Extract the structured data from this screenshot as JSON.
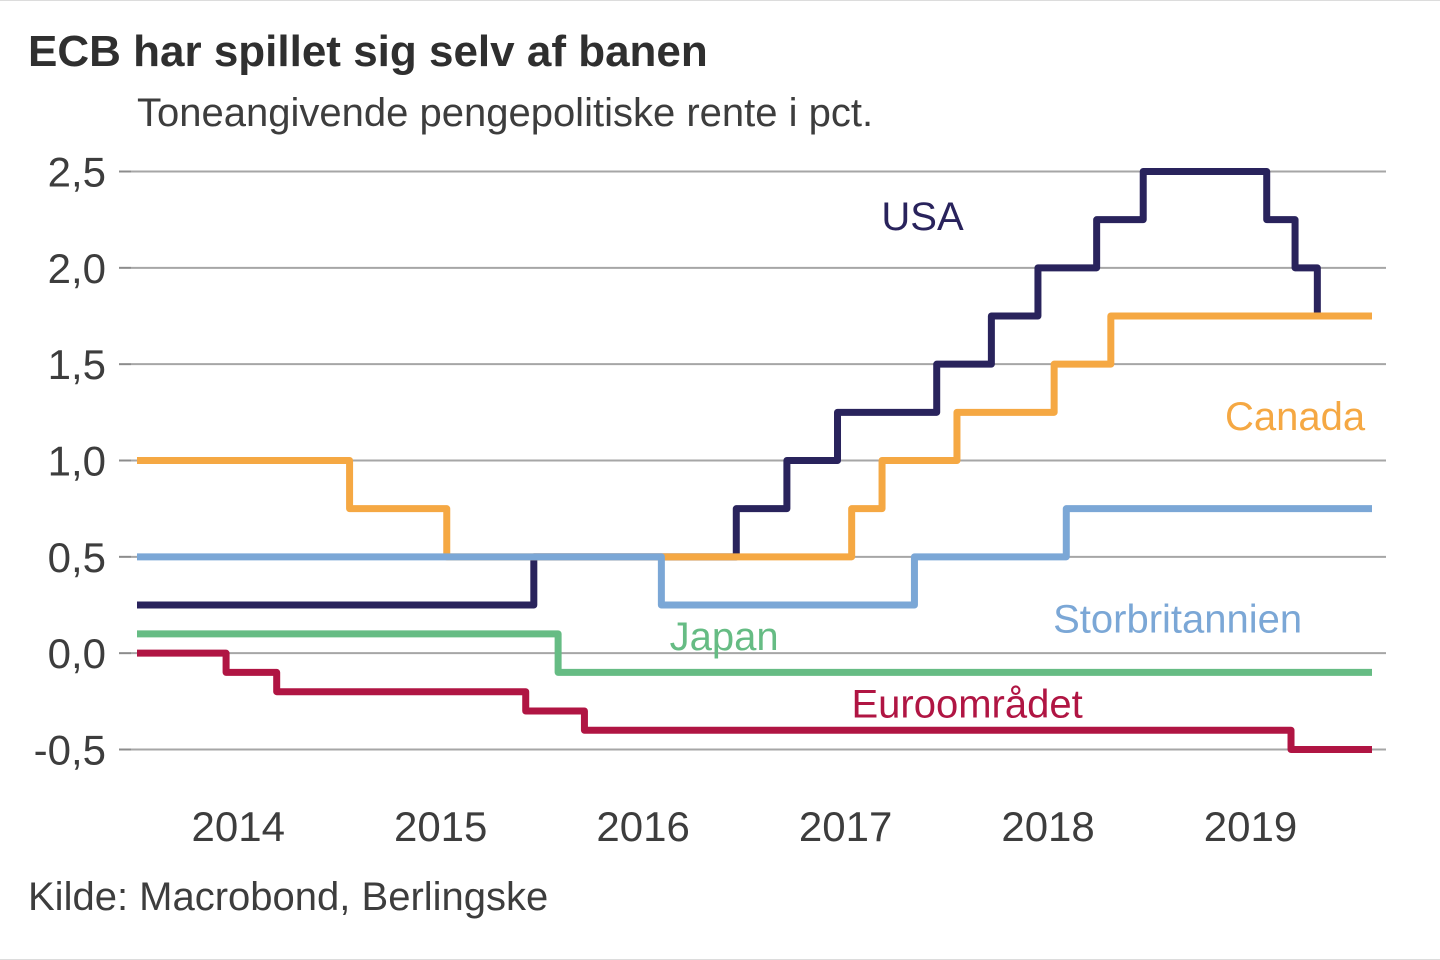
{
  "colors": {
    "background": "#ffffff",
    "grid": "#a6a6a6",
    "tick": "#8c8c8c",
    "axis_text": "#3d3d3d",
    "title_text": "#2f2f2f"
  },
  "chart_data": {
    "type": "line",
    "subtype": "step-after",
    "title": "ECB har spillet sig selv af banen",
    "subtitle": "Toneangivende pengepolitiske rente i pct.",
    "source": "Kilde: Macrobond, Berlingske",
    "unit": "pct.",
    "grid": "horizontal",
    "legend_position": "inline-labels",
    "x_domain": [
      2014.0,
      2020.1
    ],
    "ylim": [
      -0.5,
      2.5
    ],
    "x_ticks": [
      {
        "label": "2014",
        "center": 2014.5
      },
      {
        "label": "2015",
        "center": 2015.5
      },
      {
        "label": "2016",
        "center": 2016.5
      },
      {
        "label": "2017",
        "center": 2017.5
      },
      {
        "label": "2018",
        "center": 2018.5
      },
      {
        "label": "2019",
        "center": 2019.5
      }
    ],
    "y_ticks": [
      {
        "value": 2.5,
        "label": "2,5"
      },
      {
        "value": 2.0,
        "label": "2,0"
      },
      {
        "value": 1.5,
        "label": "1,5"
      },
      {
        "value": 1.0,
        "label": "1,0"
      },
      {
        "value": 0.5,
        "label": "0,5"
      },
      {
        "value": 0.0,
        "label": "0,0"
      },
      {
        "value": -0.5,
        "label": "-0,5"
      }
    ],
    "series": [
      {
        "name": "USA",
        "color": "#29235c",
        "label_anchor": {
          "x": 2017.88,
          "y": 2.27
        },
        "points": [
          [
            2014.0,
            0.25
          ],
          [
            2015.96,
            0.5
          ],
          [
            2016.96,
            0.75
          ],
          [
            2017.21,
            1.0
          ],
          [
            2017.46,
            1.25
          ],
          [
            2017.95,
            1.5
          ],
          [
            2018.22,
            1.75
          ],
          [
            2018.45,
            2.0
          ],
          [
            2018.74,
            2.25
          ],
          [
            2018.97,
            2.5
          ],
          [
            2019.58,
            2.25
          ],
          [
            2019.72,
            2.0
          ],
          [
            2019.83,
            1.75
          ]
        ]
      },
      {
        "name": "Canada",
        "color": "#f5a843",
        "label_anchor": {
          "x": 2019.72,
          "y": 1.23
        },
        "points": [
          [
            2014.0,
            1.0
          ],
          [
            2015.05,
            0.75
          ],
          [
            2015.53,
            0.5
          ],
          [
            2017.53,
            0.75
          ],
          [
            2017.68,
            1.0
          ],
          [
            2018.05,
            1.25
          ],
          [
            2018.53,
            1.5
          ],
          [
            2018.81,
            1.75
          ]
        ]
      },
      {
        "name": "Storbritannien",
        "color": "#7ba7d6",
        "label_anchor": {
          "x": 2019.14,
          "y": 0.18
        },
        "points": [
          [
            2014.0,
            0.5
          ],
          [
            2016.59,
            0.25
          ],
          [
            2017.84,
            0.5
          ],
          [
            2018.59,
            0.75
          ]
        ]
      },
      {
        "name": "Japan",
        "color": "#66bc84",
        "label_anchor": {
          "x": 2016.9,
          "y": 0.09
        },
        "points": [
          [
            2014.0,
            0.1
          ],
          [
            2016.08,
            -0.1
          ]
        ]
      },
      {
        "name": "Euroområdet",
        "color": "#b01543",
        "label_anchor": {
          "x": 2018.1,
          "y": -0.26
        },
        "points": [
          [
            2014.0,
            0.0
          ],
          [
            2014.44,
            -0.1
          ],
          [
            2014.69,
            -0.2
          ],
          [
            2015.92,
            -0.3
          ],
          [
            2016.21,
            -0.4
          ],
          [
            2019.7,
            -0.5
          ]
        ]
      }
    ]
  }
}
